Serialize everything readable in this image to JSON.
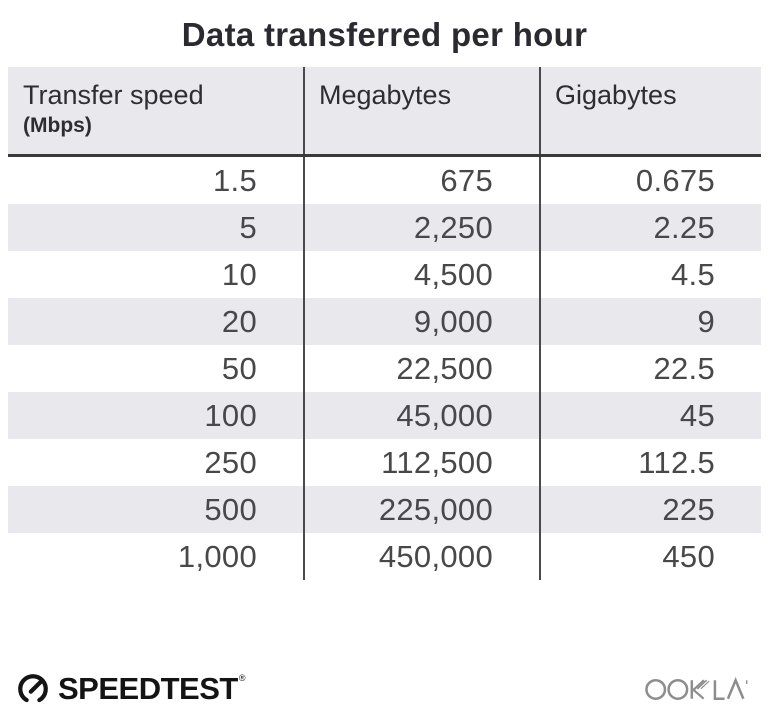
{
  "title": "Data transferred per hour",
  "table": {
    "columns": [
      {
        "label": "Transfer speed",
        "sublabel": "(Mbps)"
      },
      {
        "label": "Megabytes"
      },
      {
        "label": "Gigabytes"
      }
    ],
    "rows": [
      [
        "1.5",
        "675",
        "0.675"
      ],
      [
        "5",
        "2,250",
        "2.25"
      ],
      [
        "10",
        "4,500",
        "4.5"
      ],
      [
        "20",
        "9,000",
        "9"
      ],
      [
        "50",
        "22,500",
        "22.5"
      ],
      [
        "100",
        "45,000",
        "45"
      ],
      [
        "250",
        "112,500",
        "112.5"
      ],
      [
        "500",
        "225,000",
        "225"
      ],
      [
        "1,000",
        "450,000",
        "450"
      ]
    ]
  },
  "footer": {
    "speedtest_label": "SPEEDTEST",
    "speedtest_mark": "®",
    "ookla_label": "OOKLA"
  },
  "icons": {
    "gauge": "speedtest-gauge-icon",
    "ookla_wordmark": "ookla-logo"
  },
  "colors": {
    "stripe_gray": "#e9e9ed",
    "divider_gray": "#4a4a4c",
    "header_border": "#3a3a3c",
    "title_text": "#2b2a30",
    "number_text": "#48484a",
    "speedtest_black": "#141414",
    "ookla_gray": "#8d8d8d"
  },
  "chart_data": {
    "type": "table",
    "title": "Data transferred per hour",
    "columns": [
      "Transfer speed (Mbps)",
      "Megabytes",
      "Gigabytes"
    ],
    "rows": [
      [
        1.5,
        675,
        0.675
      ],
      [
        5,
        2250,
        2.25
      ],
      [
        10,
        4500,
        4.5
      ],
      [
        20,
        9000,
        9
      ],
      [
        50,
        22500,
        22.5
      ],
      [
        100,
        45000,
        45
      ],
      [
        250,
        112500,
        112.5
      ],
      [
        500,
        225000,
        225
      ],
      [
        1000,
        450000,
        450
      ]
    ],
    "layout": {
      "striped_rows": true,
      "header_background": "#e9e9ed",
      "column_dividers": true
    }
  }
}
